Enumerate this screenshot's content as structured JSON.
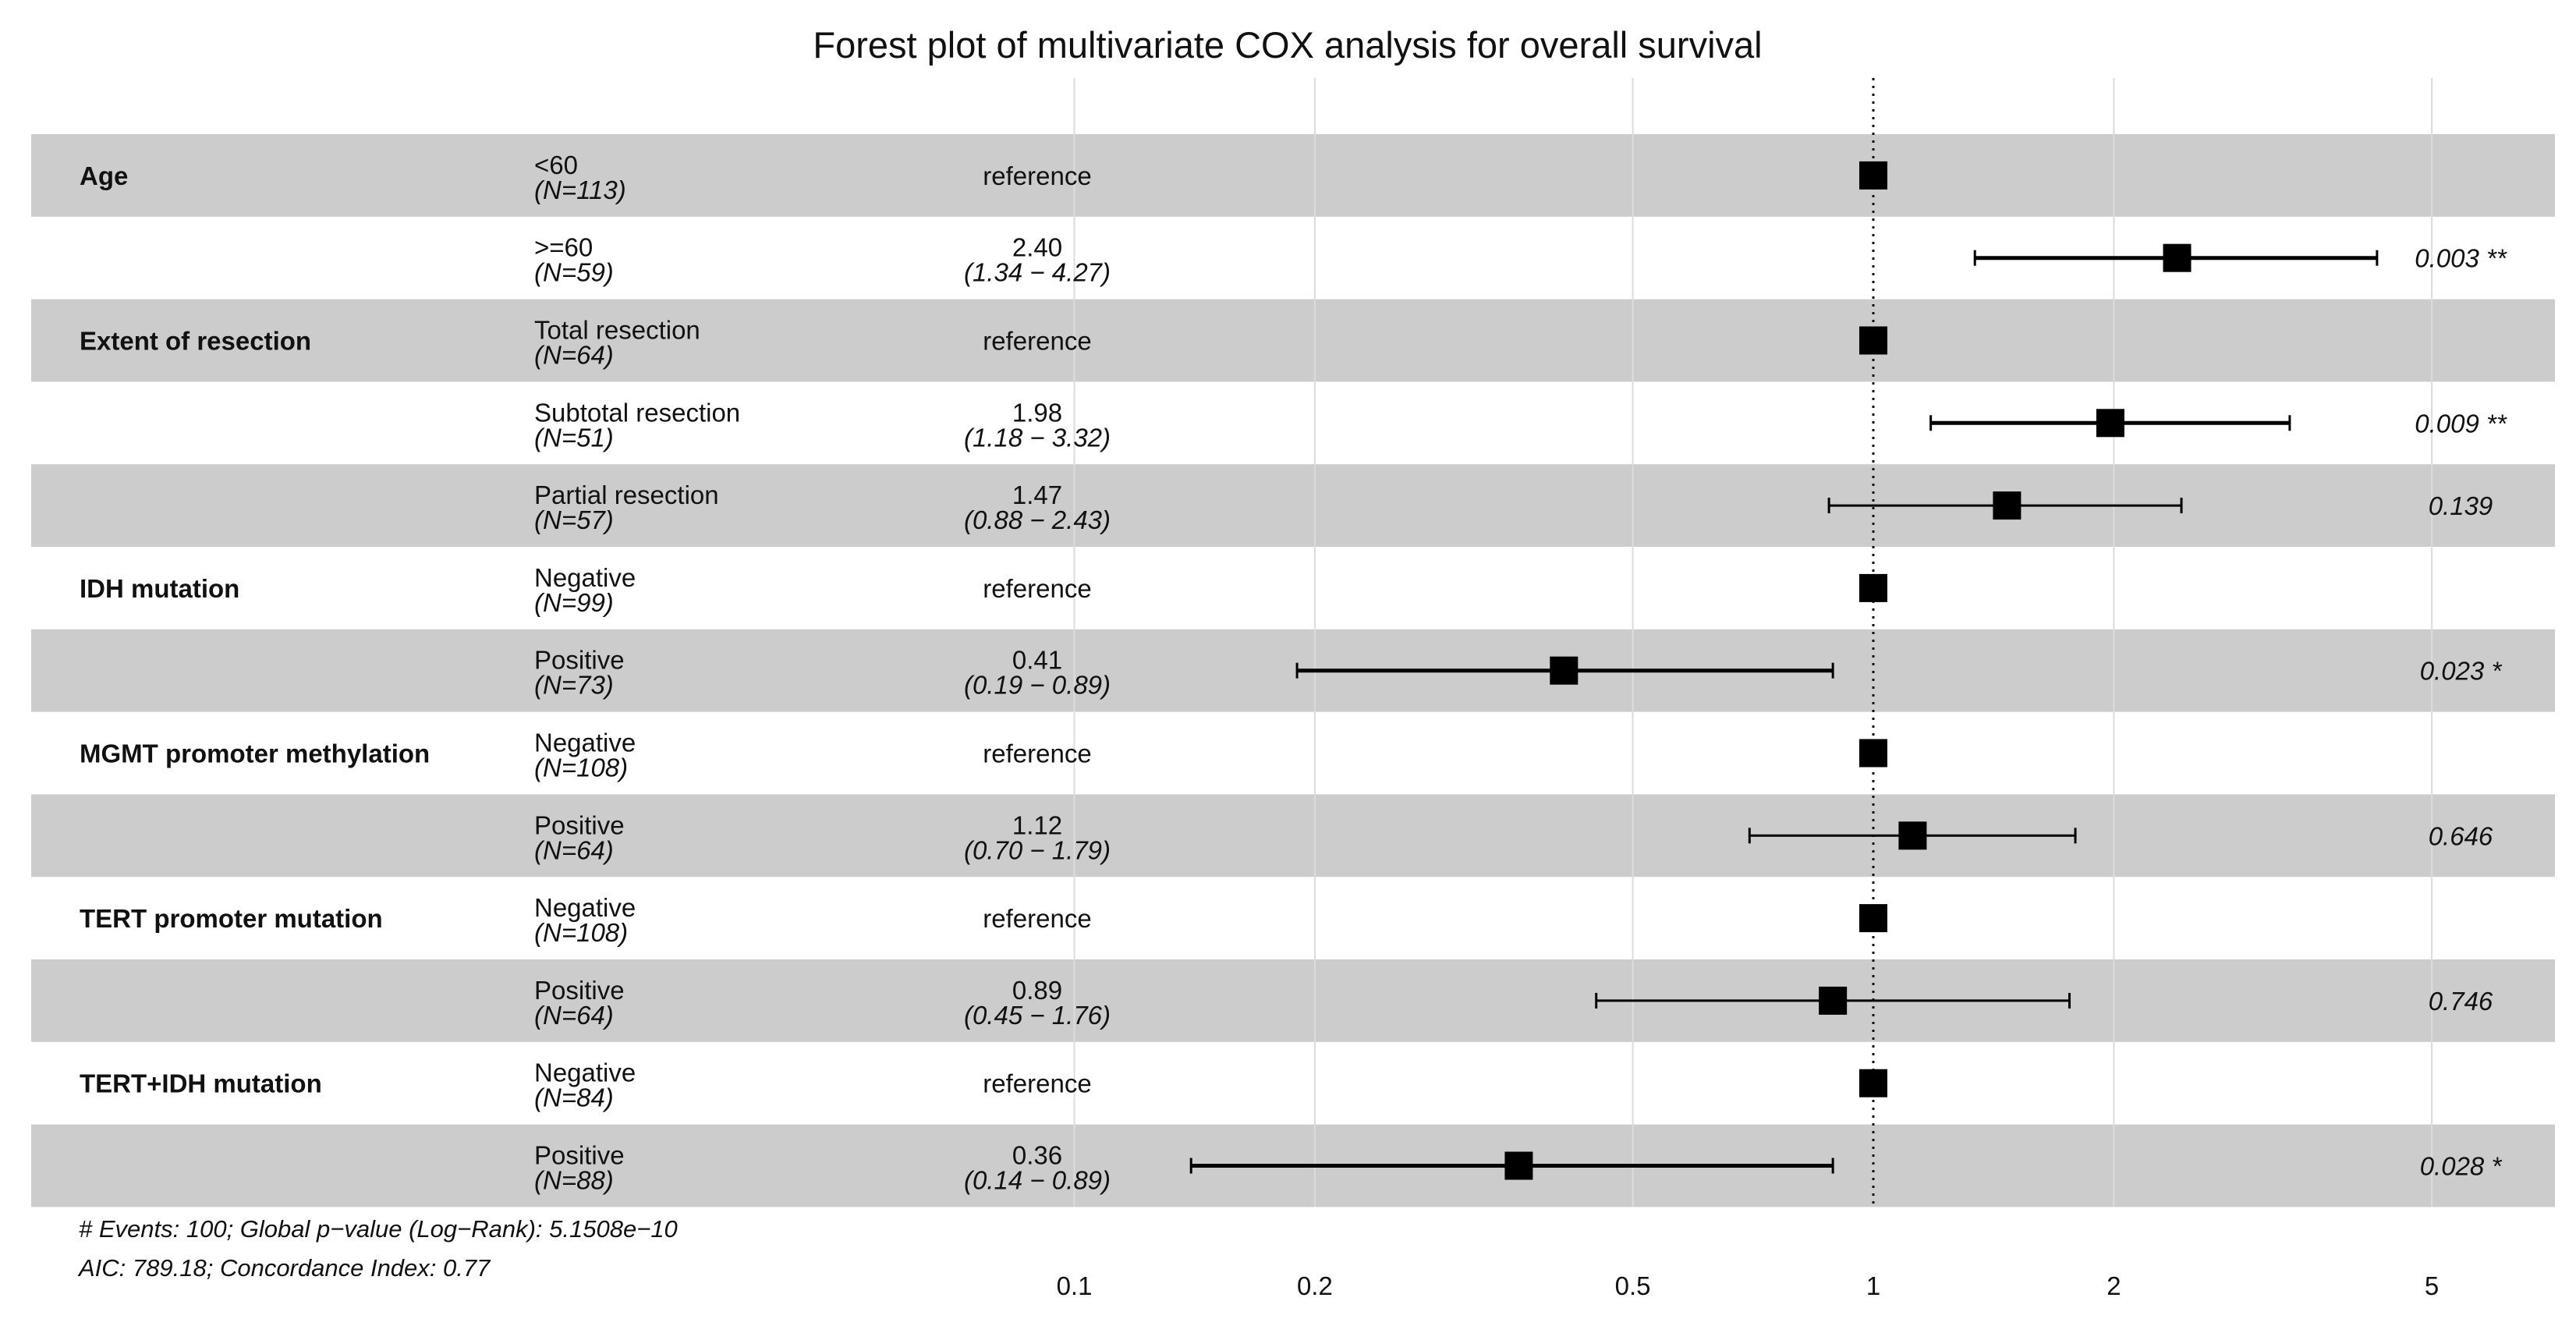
{
  "chart_data": {
    "type": "forest",
    "title": "Forest plot of multivariate COX analysis for overall survival",
    "xscale": "log",
    "xlim": [
      0.1,
      6.3
    ],
    "xticks": [
      0.1,
      0.2,
      0.5,
      1,
      2,
      5
    ],
    "xtick_labels": [
      "0.1",
      "0.2",
      "0.5",
      "1",
      "2",
      "5"
    ],
    "reference_value": 1,
    "rows": [
      {
        "variable": "Age",
        "level": "<60",
        "n": "(N=113)",
        "hr": 1,
        "hr_text": "reference",
        "ci_low": null,
        "ci_high": null,
        "ci_text": "",
        "p_text": ""
      },
      {
        "variable": "",
        "level": ">=60",
        "n": "(N=59)",
        "hr": 2.4,
        "hr_text": "2.40",
        "ci_low": 1.34,
        "ci_high": 4.27,
        "ci_text": "(1.34 − 4.27)",
        "p_text": "0.003 **"
      },
      {
        "variable": "Extent of resection",
        "level": "Total resection",
        "n": "(N=64)",
        "hr": 1,
        "hr_text": "reference",
        "ci_low": null,
        "ci_high": null,
        "ci_text": "",
        "p_text": ""
      },
      {
        "variable": "",
        "level": "Subtotal resection",
        "n": "(N=51)",
        "hr": 1.98,
        "hr_text": "1.98",
        "ci_low": 1.18,
        "ci_high": 3.32,
        "ci_text": "(1.18 − 3.32)",
        "p_text": "0.009 **"
      },
      {
        "variable": "",
        "level": "Partial resection",
        "n": "(N=57)",
        "hr": 1.47,
        "hr_text": "1.47",
        "ci_low": 0.88,
        "ci_high": 2.43,
        "ci_text": "(0.88 − 2.43)",
        "p_text": "0.139"
      },
      {
        "variable": "IDH mutation",
        "level": "Negative",
        "n": "(N=99)",
        "hr": 1,
        "hr_text": "reference",
        "ci_low": null,
        "ci_high": null,
        "ci_text": "",
        "p_text": ""
      },
      {
        "variable": "",
        "level": "Positive",
        "n": "(N=73)",
        "hr": 0.41,
        "hr_text": "0.41",
        "ci_low": 0.19,
        "ci_high": 0.89,
        "ci_text": "(0.19 − 0.89)",
        "p_text": "0.023 *"
      },
      {
        "variable": "MGMT promoter methylation",
        "level": "Negative",
        "n": "(N=108)",
        "hr": 1,
        "hr_text": "reference",
        "ci_low": null,
        "ci_high": null,
        "ci_text": "",
        "p_text": ""
      },
      {
        "variable": "",
        "level": "Positive",
        "n": "(N=64)",
        "hr": 1.12,
        "hr_text": "1.12",
        "ci_low": 0.7,
        "ci_high": 1.79,
        "ci_text": "(0.70 − 1.79)",
        "p_text": "0.646"
      },
      {
        "variable": "TERT promoter mutation",
        "level": "Negative",
        "n": "(N=108)",
        "hr": 1,
        "hr_text": "reference",
        "ci_low": null,
        "ci_high": null,
        "ci_text": "",
        "p_text": ""
      },
      {
        "variable": "",
        "level": "Positive",
        "n": "(N=64)",
        "hr": 0.89,
        "hr_text": "0.89",
        "ci_low": 0.45,
        "ci_high": 1.76,
        "ci_text": "(0.45 − 1.76)",
        "p_text": "0.746"
      },
      {
        "variable": "TERT+IDH mutation",
        "level": "Negative",
        "n": "(N=84)",
        "hr": 1,
        "hr_text": "reference",
        "ci_low": null,
        "ci_high": null,
        "ci_text": "",
        "p_text": ""
      },
      {
        "variable": "",
        "level": "Positive",
        "n": "(N=88)",
        "hr": 0.36,
        "hr_text": "0.36",
        "ci_low": 0.14,
        "ci_high": 0.89,
        "ci_text": "(0.14 − 0.89)",
        "p_text": "0.028 *"
      }
    ],
    "footer": [
      "# Events: 100; Global p−value (Log−Rank): 5.1508e−10",
      "AIC: 789.18; Concordance Index: 0.77"
    ]
  },
  "colors": {
    "band": "#cccccc",
    "gridline": "#dcdcdc",
    "marker": "#000000",
    "text": "#111111"
  }
}
